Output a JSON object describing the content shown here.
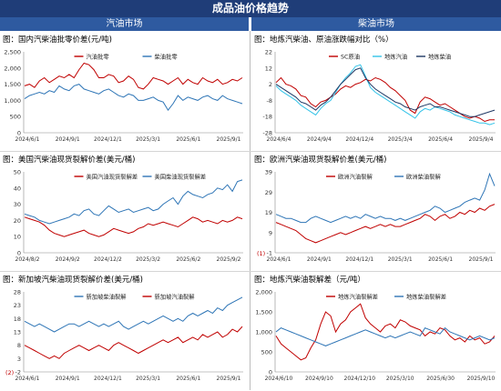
{
  "page": {
    "title": "成品油价格趋势",
    "left_section": "汽油市场",
    "right_section": "柴油市场"
  },
  "colors": {
    "red": "#c00000",
    "blue": "#2e75b6",
    "light_blue": "#33c3e8",
    "navy": "#1f3864"
  },
  "chart_data": [
    {
      "type": "line",
      "title": "图：国内汽柴油批零价差(元/吨)",
      "ylim": [
        0,
        2500
      ],
      "yticks": [
        0,
        500,
        1000,
        1500,
        2000,
        2500
      ],
      "xlabels": [
        "2024/6/1",
        "2024/9/1",
        "2024/12/1",
        "2025/3/1",
        "2025/6/1",
        "2025/9/1"
      ],
      "series": [
        {
          "name": "汽油批零",
          "color": "#c00000",
          "values": [
            1450,
            1500,
            1400,
            1600,
            1700,
            1550,
            1650,
            1750,
            1700,
            1800,
            1700,
            1950,
            2150,
            2100,
            1950,
            1700,
            1700,
            1800,
            1750,
            1550,
            1600,
            1750,
            1650,
            1400,
            1350,
            1500,
            1700,
            1650,
            1600,
            1500,
            1600,
            1700,
            1500,
            1650,
            1550,
            1500,
            1700,
            1600,
            1550,
            1650,
            1500,
            1550,
            1650,
            1600,
            1700
          ]
        },
        {
          "name": "柴油批零",
          "color": "#2e75b6",
          "values": [
            1050,
            1150,
            1200,
            1250,
            1200,
            1300,
            1250,
            1450,
            1350,
            1300,
            1450,
            1500,
            1350,
            1300,
            1250,
            1200,
            1300,
            1350,
            1250,
            1150,
            1100,
            1200,
            1150,
            1000,
            1000,
            1050,
            1100,
            1000,
            950,
            700,
            900,
            1150,
            1000,
            1100,
            1050,
            1000,
            1100,
            1150,
            1050,
            1000,
            1150,
            1050,
            1000,
            950,
            900
          ]
        }
      ]
    },
    {
      "type": "line",
      "title": "图：地炼汽柴油、原油涨跌幅对比（%）",
      "ylim": [
        -28,
        22
      ],
      "yticks": [
        22,
        12,
        2,
        -8,
        -18,
        -28
      ],
      "xlabels": [
        "2024/6/4",
        "2024/9/4",
        "2024/12/4",
        "2025/3/4",
        "2025/6/4",
        "2025/9/4"
      ],
      "series": [
        {
          "name": "SC原油",
          "color": "#c00000",
          "values": [
            3,
            6,
            2,
            1,
            -1,
            -5,
            -6,
            -10,
            -12,
            -9,
            -8,
            -6,
            -4,
            -1,
            1,
            0,
            2,
            3,
            5,
            4,
            6,
            5,
            3,
            0,
            -2,
            -5,
            -8,
            -14,
            -16,
            -9,
            -6,
            -7,
            -9,
            -11,
            -10,
            -12,
            -14,
            -16,
            -18,
            -19,
            -18,
            -19,
            -21,
            -20,
            -20
          ]
        },
        {
          "name": "地炼汽油",
          "color": "#33c3e8",
          "values": [
            1,
            -2,
            -4,
            -6,
            -8,
            -11,
            -13,
            -15,
            -17,
            -13,
            -10,
            -8,
            -3,
            2,
            6,
            9,
            13,
            14,
            7,
            0,
            -3,
            -5,
            -7,
            -9,
            -11,
            -13,
            -15,
            -17,
            -19,
            -15,
            -13,
            -14,
            -12,
            -13,
            -14,
            -15,
            -17,
            -18,
            -19,
            -20,
            -21,
            -22,
            -22,
            -23,
            -22
          ]
        },
        {
          "name": "地炼柴油",
          "color": "#1f3864",
          "values": [
            2,
            0,
            -2,
            -4,
            -6,
            -9,
            -10,
            -12,
            -14,
            -11,
            -9,
            -6,
            -2,
            2,
            5,
            8,
            11,
            12,
            6,
            2,
            -1,
            -3,
            -5,
            -7,
            -9,
            -10,
            -12,
            -13,
            -14,
            -12,
            -11,
            -10,
            -12,
            -12,
            -13,
            -14,
            -15,
            -16,
            -17,
            -18,
            -18,
            -17,
            -16,
            -15,
            -14
          ]
        }
      ]
    },
    {
      "type": "line",
      "title": "图：美国汽柴油现货裂解价差(美元/桶)",
      "ylim": [
        0,
        50
      ],
      "yticks": [
        0,
        10,
        20,
        30,
        40,
        50
      ],
      "xlabels": [
        "2024/8/2",
        "2024/9/2",
        "2024/12/2",
        "2025/3/2",
        "2025/6/2",
        "2025/9/2"
      ],
      "series": [
        {
          "name": "美国汽油现货裂解差",
          "color": "#c00000",
          "values": [
            22,
            21,
            20,
            19,
            17,
            14,
            12,
            11,
            10,
            11,
            12,
            13,
            14,
            12,
            11,
            10,
            11,
            13,
            15,
            14,
            13,
            12,
            13,
            15,
            16,
            18,
            17,
            18,
            19,
            18,
            17,
            16,
            18,
            20,
            22,
            21,
            19,
            20,
            19,
            18,
            20,
            19,
            20,
            22,
            21
          ]
        },
        {
          "name": "美国柴油现货裂解差",
          "color": "#2e75b6",
          "values": [
            24,
            23,
            22,
            20,
            19,
            18,
            19,
            20,
            21,
            22,
            24,
            23,
            26,
            27,
            24,
            23,
            26,
            29,
            27,
            25,
            26,
            27,
            25,
            26,
            27,
            28,
            26,
            27,
            30,
            32,
            34,
            30,
            35,
            38,
            36,
            35,
            34,
            36,
            37,
            40,
            39,
            42,
            38,
            44,
            45
          ]
        }
      ]
    },
    {
      "type": "line",
      "title": "图：欧洲汽柴油现货裂解价差(美元/桶)",
      "ylim": [
        -1,
        39
      ],
      "yticks": [
        39,
        29,
        19,
        9,
        -1
      ],
      "xlabels": [
        "2024/6/1",
        "2024/9/1",
        "2024/12/1",
        "2025/3/1",
        "2025/6/1",
        "2025/9/1"
      ],
      "footnote": "(1)",
      "series": [
        {
          "name": "欧洲汽油裂解",
          "color": "#c00000",
          "values": [
            14,
            13,
            12,
            11,
            10,
            8,
            6,
            5,
            4,
            5,
            6,
            7,
            8,
            9,
            8,
            9,
            10,
            11,
            12,
            11,
            12,
            13,
            12,
            13,
            12,
            12,
            13,
            14,
            15,
            16,
            18,
            17,
            15,
            17,
            18,
            16,
            17,
            19,
            18,
            20,
            19,
            21,
            20,
            22,
            23
          ]
        },
        {
          "name": "欧洲柴油裂解",
          "color": "#2e75b6",
          "values": [
            18,
            17,
            16,
            16,
            15,
            14,
            14,
            16,
            17,
            16,
            15,
            14,
            15,
            16,
            17,
            16,
            17,
            16,
            18,
            17,
            16,
            17,
            16,
            16,
            15,
            16,
            15,
            16,
            17,
            18,
            19,
            20,
            22,
            21,
            19,
            20,
            21,
            22,
            24,
            25,
            26,
            25,
            30,
            38,
            32
          ]
        }
      ]
    },
    {
      "type": "line",
      "title": "图：新加坡汽柴油现货裂解价差(美元/桶)",
      "ylim": [
        -2,
        28
      ],
      "yticks": [
        28,
        23,
        18,
        13,
        8,
        3,
        -2
      ],
      "xlabels": [
        "2024/6/1",
        "2024/9/1",
        "2024/12/1",
        "2025/3/1",
        "2025/6/1",
        "2025/9/1"
      ],
      "footnote": "(2)",
      "series": [
        {
          "name": "新加坡柴油裂解",
          "color": "#2e75b6",
          "values": [
            17,
            16,
            15,
            16,
            15,
            14,
            13,
            14,
            15,
            16,
            16,
            15,
            16,
            17,
            16,
            15,
            16,
            15,
            16,
            17,
            15,
            14,
            15,
            16,
            17,
            16,
            17,
            18,
            19,
            18,
            17,
            18,
            17,
            19,
            20,
            19,
            20,
            21,
            20,
            22,
            21,
            23,
            24,
            25,
            26
          ]
        },
        {
          "name": "新加坡汽油裂解",
          "color": "#c00000",
          "values": [
            8,
            7,
            6,
            5,
            4,
            3,
            4,
            3,
            5,
            6,
            7,
            8,
            7,
            6,
            7,
            8,
            7,
            6,
            8,
            9,
            8,
            7,
            6,
            5,
            6,
            7,
            8,
            9,
            10,
            9,
            10,
            11,
            9,
            10,
            11,
            10,
            12,
            11,
            12,
            13,
            11,
            12,
            14,
            13,
            15
          ]
        }
      ]
    },
    {
      "type": "line",
      "title": "图：地炼汽柴油裂解差（元/吨）",
      "ylim": [
        0,
        2000
      ],
      "yticks": [
        0,
        500,
        1000,
        1500,
        2000
      ],
      "xlabels": [
        "2024/6/10",
        "2024/9/10",
        "2024/12/10",
        "2025/3/10",
        "2025/6/30",
        "2025/9/10"
      ],
      "series": [
        {
          "name": "地炼汽油裂解差",
          "color": "#c00000",
          "values": [
            900,
            700,
            600,
            500,
            400,
            300,
            350,
            600,
            800,
            1200,
            1500,
            1400,
            1000,
            1200,
            1300,
            1500,
            1600,
            1700,
            1350,
            1200,
            1100,
            1000,
            1150,
            1200,
            1100,
            1300,
            1250,
            1150,
            1100,
            1050,
            900,
            1000,
            950,
            1100,
            1050,
            900,
            800,
            850,
            750,
            900,
            800,
            850,
            700,
            750,
            900
          ]
        },
        {
          "name": "地炼柴油裂解差",
          "color": "#2e75b6",
          "values": [
            1000,
            1100,
            1050,
            1000,
            950,
            900,
            850,
            800,
            750,
            700,
            650,
            700,
            750,
            800,
            850,
            900,
            950,
            1000,
            1050,
            1000,
            950,
            900,
            850,
            900,
            850,
            900,
            950,
            1000,
            950,
            900,
            1100,
            1050,
            1000,
            950,
            1100,
            1000,
            950,
            900,
            850,
            800,
            850,
            900,
            850,
            800,
            850
          ]
        }
      ]
    }
  ]
}
